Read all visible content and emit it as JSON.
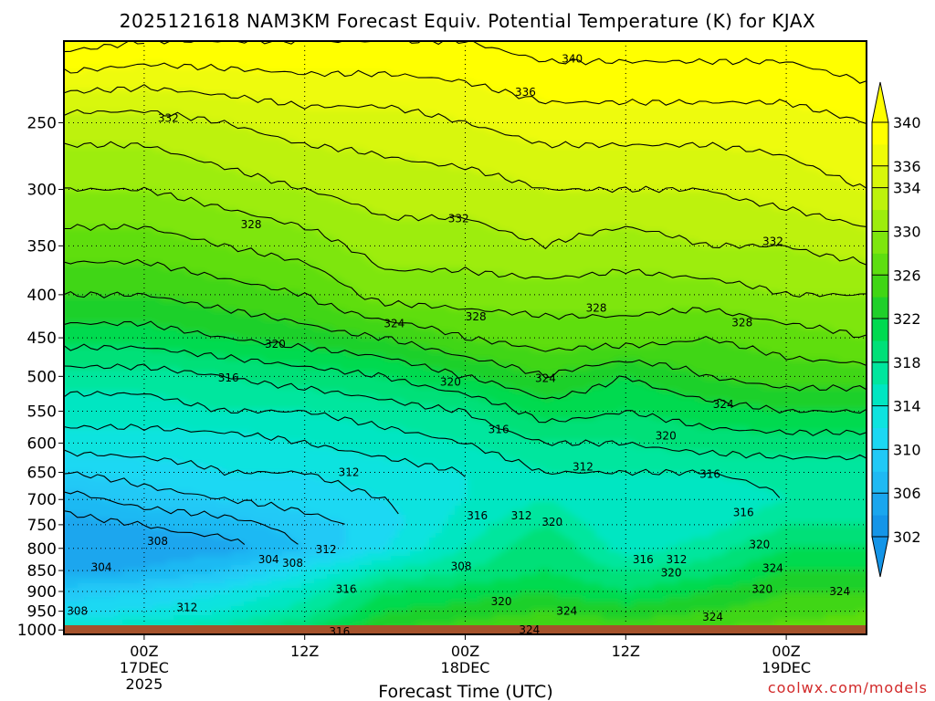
{
  "chart_data": {
    "type": "heatmap",
    "title": "2025121618 NAM3KM Forecast Equiv. Potential Temperature (K) for KJAX",
    "xlabel": "Forecast Time (UTC)",
    "ylabel": "",
    "y_scale": "log (pressure, hPa, decreasing upward)",
    "ylim": [
      1012,
      200
    ],
    "xlim": [
      0,
      60
    ],
    "y_ticks": [
      250,
      300,
      350,
      400,
      450,
      500,
      550,
      600,
      650,
      700,
      750,
      800,
      850,
      900,
      950,
      1000
    ],
    "y_tick_labels": [
      "250",
      "300",
      "350",
      "400",
      "450",
      "500",
      "550",
      "600",
      "650",
      "700",
      "750",
      "800",
      "850",
      "900",
      "950",
      "1000"
    ],
    "x_ticks": [
      {
        "hour": 6,
        "lines": [
          "00Z",
          "17DEC",
          "2025"
        ]
      },
      {
        "hour": 18,
        "lines": [
          "12Z",
          "",
          ""
        ]
      },
      {
        "hour": 30,
        "lines": [
          "00Z",
          "18DEC",
          ""
        ]
      },
      {
        "hour": 42,
        "lines": [
          "12Z",
          "",
          ""
        ]
      },
      {
        "hour": 54,
        "lines": [
          "00Z",
          "19DEC",
          ""
        ]
      }
    ],
    "grid": "dotted",
    "colorbar": {
      "placement": "right",
      "boundaries": [
        302,
        304,
        306,
        308,
        310,
        312,
        314,
        316,
        318,
        320,
        322,
        324,
        326,
        328,
        330,
        332,
        334,
        336,
        338,
        340
      ],
      "labels": [
        "302",
        "306",
        "310",
        "314",
        "318",
        "322",
        "326",
        "330",
        "334",
        "336",
        "340"
      ],
      "label_values": [
        302,
        306,
        310,
        314,
        318,
        322,
        326,
        330,
        334,
        336,
        340
      ],
      "colors": [
        "#1495e8",
        "#1aa6ee",
        "#1fb9f3",
        "#21c9f6",
        "#1bd8f3",
        "#0ee3df",
        "#00e6c2",
        "#00e69e",
        "#00e078",
        "#00da50",
        "#1fd02a",
        "#40d614",
        "#5ede10",
        "#7ee60e",
        "#9ded0d",
        "#bdf20c",
        "#d8f70a",
        "#eefb07",
        "#ffff00"
      ]
    },
    "surface_color": "#a5522b",
    "profile_levels": [
      200,
      250,
      300,
      350,
      400,
      450,
      500,
      550,
      600,
      650,
      700,
      750,
      800,
      850,
      900,
      950,
      1000
    ],
    "columns": [
      {
        "hour": 0,
        "theta_e": [
          341,
          333,
          330,
          327,
          324,
          321,
          317,
          315,
          313,
          310,
          307,
          305,
          304,
          305,
          309,
          311,
          315
        ]
      },
      {
        "hour": 6,
        "theta_e": [
          340,
          333,
          330,
          327,
          324,
          321,
          317,
          315,
          313,
          311,
          309,
          306,
          305,
          306,
          310,
          312,
          316
        ]
      },
      {
        "hour": 12,
        "theta_e": [
          340,
          334,
          331,
          328,
          325,
          322,
          318,
          316,
          313,
          312,
          310,
          307,
          305,
          308,
          312,
          314,
          317
        ]
      },
      {
        "hour": 18,
        "theta_e": [
          340,
          335,
          332,
          329,
          326,
          323,
          319,
          316,
          314,
          312,
          311,
          309,
          308,
          312,
          315,
          317,
          320
        ]
      },
      {
        "hour": 24,
        "theta_e": [
          340,
          335,
          333,
          331,
          329,
          324,
          320,
          317,
          315,
          313,
          312,
          311,
          312,
          316,
          320,
          322,
          324
        ]
      },
      {
        "hour": 30,
        "theta_e": [
          340,
          336,
          333,
          331,
          329,
          326,
          322,
          318,
          316,
          314,
          314,
          315,
          316,
          318,
          321,
          323,
          325
        ]
      },
      {
        "hour": 36,
        "theta_e": [
          341,
          337,
          334,
          332,
          329,
          327,
          324,
          321,
          318,
          316,
          316,
          318,
          320,
          320,
          322,
          324,
          326
        ]
      },
      {
        "hour": 42,
        "theta_e": [
          341,
          337,
          334,
          331,
          329,
          327,
          322,
          320,
          318,
          316,
          314,
          314,
          315,
          318,
          320,
          323,
          325
        ]
      },
      {
        "hour": 48,
        "theta_e": [
          341,
          337,
          334,
          332,
          329,
          326,
          324,
          321,
          319,
          316,
          314,
          315,
          317,
          319,
          322,
          324,
          326
        ]
      },
      {
        "hour": 54,
        "theta_e": [
          341,
          337,
          335,
          332,
          330,
          327,
          325,
          322,
          319,
          317,
          316,
          318,
          320,
          322,
          324,
          325,
          327
        ]
      },
      {
        "hour": 60,
        "theta_e": [
          342,
          338,
          336,
          333,
          330,
          328,
          325,
          322,
          319,
          317,
          316,
          318,
          320,
          322,
          324,
          326,
          327
        ]
      }
    ],
    "contour_labels": [
      {
        "text": "340",
        "hour": 38,
        "pressure": 210
      },
      {
        "text": "336",
        "hour": 34.5,
        "pressure": 230
      },
      {
        "text": "332",
        "hour": 7.8,
        "pressure": 247
      },
      {
        "text": "332",
        "hour": 29.5,
        "pressure": 325
      },
      {
        "text": "332",
        "hour": 53,
        "pressure": 346
      },
      {
        "text": "328",
        "hour": 14,
        "pressure": 330
      },
      {
        "text": "328",
        "hour": 30.8,
        "pressure": 425
      },
      {
        "text": "328",
        "hour": 39.8,
        "pressure": 415
      },
      {
        "text": "328",
        "hour": 50.7,
        "pressure": 432
      },
      {
        "text": "324",
        "hour": 24.7,
        "pressure": 433
      },
      {
        "text": "324",
        "hour": 36,
        "pressure": 503
      },
      {
        "text": "324",
        "hour": 49.3,
        "pressure": 540
      },
      {
        "text": "324",
        "hour": 53,
        "pressure": 845
      },
      {
        "text": "324",
        "hour": 58,
        "pressure": 900
      },
      {
        "text": "324",
        "hour": 37.6,
        "pressure": 950
      },
      {
        "text": "324",
        "hour": 48.5,
        "pressure": 965
      },
      {
        "text": "324",
        "hour": 34.8,
        "pressure": 1000
      },
      {
        "text": "320",
        "hour": 15.8,
        "pressure": 458
      },
      {
        "text": "320",
        "hour": 28.9,
        "pressure": 508
      },
      {
        "text": "320",
        "hour": 45,
        "pressure": 588
      },
      {
        "text": "320",
        "hour": 36.5,
        "pressure": 745
      },
      {
        "text": "320",
        "hour": 52,
        "pressure": 792
      },
      {
        "text": "320",
        "hour": 45.4,
        "pressure": 855
      },
      {
        "text": "320",
        "hour": 52.2,
        "pressure": 895
      },
      {
        "text": "320",
        "hour": 32.7,
        "pressure": 925
      },
      {
        "text": "316",
        "hour": 12.3,
        "pressure": 502
      },
      {
        "text": "316",
        "hour": 32.5,
        "pressure": 578
      },
      {
        "text": "316",
        "hour": 48.3,
        "pressure": 653
      },
      {
        "text": "316",
        "hour": 30.9,
        "pressure": 732
      },
      {
        "text": "316",
        "hour": 50.8,
        "pressure": 725
      },
      {
        "text": "316",
        "hour": 43.3,
        "pressure": 825
      },
      {
        "text": "316",
        "hour": 21.1,
        "pressure": 895
      },
      {
        "text": "316",
        "hour": 20.6,
        "pressure": 1005
      },
      {
        "text": "312",
        "hour": 21.3,
        "pressure": 650
      },
      {
        "text": "312",
        "hour": 38.8,
        "pressure": 640
      },
      {
        "text": "312",
        "hour": 34.2,
        "pressure": 732
      },
      {
        "text": "312",
        "hour": 19.6,
        "pressure": 802
      },
      {
        "text": "312",
        "hour": 45.8,
        "pressure": 825
      },
      {
        "text": "312",
        "hour": 9.2,
        "pressure": 940
      },
      {
        "text": "308",
        "hour": 7,
        "pressure": 785
      },
      {
        "text": "308",
        "hour": 17.1,
        "pressure": 833
      },
      {
        "text": "308",
        "hour": 29.7,
        "pressure": 840
      },
      {
        "text": "308",
        "hour": 1,
        "pressure": 950
      },
      {
        "text": "304",
        "hour": 2.8,
        "pressure": 843
      },
      {
        "text": "304",
        "hour": 15.3,
        "pressure": 825
      }
    ]
  },
  "credit": "coolwx.com/models"
}
